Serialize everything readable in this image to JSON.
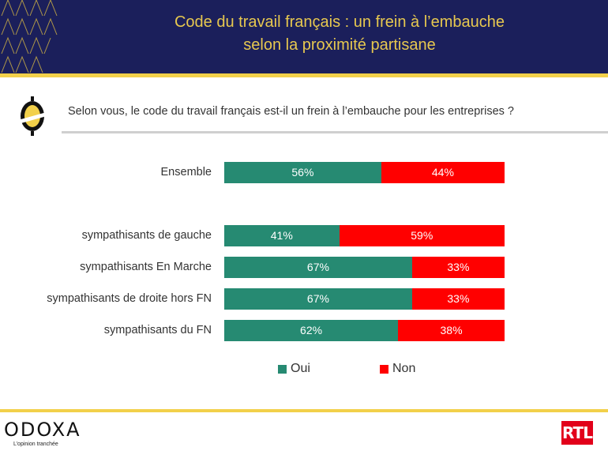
{
  "header": {
    "title_line1": "Code du travail français : un frein à l’embauche",
    "title_line2": "selon la proximité partisane"
  },
  "question": "Selon vous, le code du travail français est-il un frein à l’embauche pour les entreprises ?",
  "colors": {
    "oui": "#268a72",
    "non": "#ff0000",
    "header_bg": "#1b1f5b",
    "accent": "#f2d04a"
  },
  "chart_data": {
    "type": "bar",
    "orientation": "horizontal-stacked-100",
    "title": "Code du travail français : un frein à l’embauche selon la proximité partisane",
    "categories": [
      "Ensemble",
      "sympathisants de gauche",
      "sympathisants En Marche",
      "sympathisants de droite hors FN",
      "sympathisants du FN"
    ],
    "series": [
      {
        "name": "Oui",
        "values": [
          56,
          41,
          67,
          67,
          62
        ],
        "labels": [
          "56%",
          "41%",
          "67%",
          "67%",
          "62%"
        ]
      },
      {
        "name": "Non",
        "values": [
          44,
          59,
          33,
          33,
          38
        ],
        "labels": [
          "44%",
          "59%",
          "33%",
          "33%",
          "38%"
        ]
      }
    ],
    "xlim": [
      0,
      100
    ],
    "legend": [
      "Oui",
      "Non"
    ],
    "legend_position": "bottom",
    "grid": false
  },
  "footer": {
    "brand": "ODOXA",
    "tagline": "L’opinion tranchée",
    "partner": "RTL"
  }
}
